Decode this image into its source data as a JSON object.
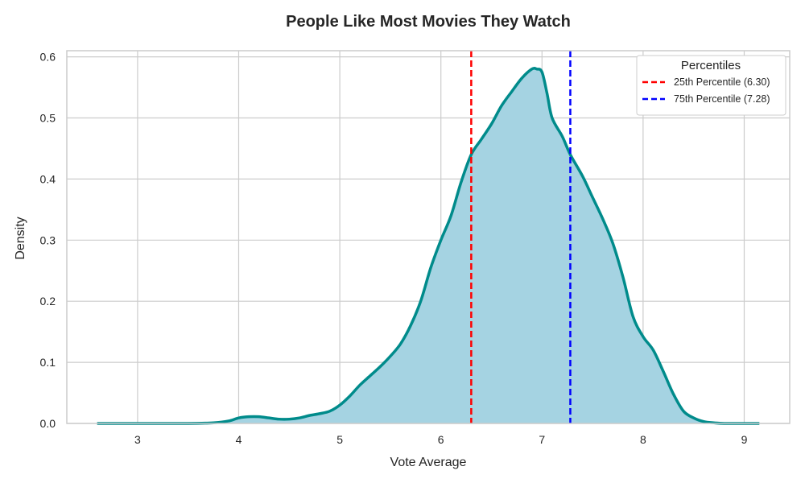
{
  "chart_data": {
    "type": "area",
    "title": "People Like Most Movies They Watch",
    "xlabel": "Vote Average",
    "ylabel": "Density",
    "xlim": [
      2.3,
      9.45
    ],
    "ylim": [
      0,
      0.61
    ],
    "xticks": [
      "3",
      "4",
      "5",
      "6",
      "7",
      "8",
      "9"
    ],
    "yticks": [
      "0.0",
      "0.1",
      "0.2",
      "0.3",
      "0.4",
      "0.5",
      "0.6"
    ],
    "grid": true,
    "legend": {
      "title": "Percentiles",
      "placement": "top-right",
      "entries": [
        {
          "label": "25th Percentile (6.30)",
          "value": 6.3,
          "color": "#ff0000",
          "style": "dashed"
        },
        {
          "label": "75th Percentile (7.28)",
          "value": 7.28,
          "color": "#0000ff",
          "style": "dashed"
        }
      ]
    },
    "series": [
      {
        "color": "#008b8b",
        "fill": "#a5d3e2",
        "x": [
          2.6,
          3.0,
          3.5,
          3.75,
          3.9,
          4.0,
          4.1,
          4.2,
          4.3,
          4.4,
          4.5,
          4.6,
          4.7,
          4.8,
          4.9,
          5.0,
          5.1,
          5.2,
          5.3,
          5.4,
          5.5,
          5.6,
          5.7,
          5.8,
          5.9,
          6.0,
          6.1,
          6.2,
          6.3,
          6.4,
          6.5,
          6.6,
          6.7,
          6.8,
          6.9,
          6.95,
          7.0,
          7.05,
          7.1,
          7.2,
          7.28,
          7.4,
          7.5,
          7.6,
          7.7,
          7.8,
          7.9,
          8.0,
          8.1,
          8.2,
          8.3,
          8.4,
          8.5,
          8.6,
          8.7,
          8.8,
          9.0,
          9.15
        ],
        "y": [
          0.0,
          0.0,
          0.0,
          0.001,
          0.004,
          0.009,
          0.011,
          0.011,
          0.009,
          0.007,
          0.007,
          0.009,
          0.013,
          0.016,
          0.02,
          0.03,
          0.045,
          0.063,
          0.078,
          0.093,
          0.11,
          0.13,
          0.16,
          0.2,
          0.255,
          0.3,
          0.34,
          0.395,
          0.44,
          0.465,
          0.49,
          0.52,
          0.543,
          0.565,
          0.58,
          0.58,
          0.575,
          0.54,
          0.5,
          0.47,
          0.44,
          0.405,
          0.37,
          0.335,
          0.295,
          0.24,
          0.175,
          0.142,
          0.12,
          0.085,
          0.048,
          0.02,
          0.009,
          0.003,
          0.001,
          0.0,
          0.0,
          0.0
        ]
      }
    ]
  }
}
